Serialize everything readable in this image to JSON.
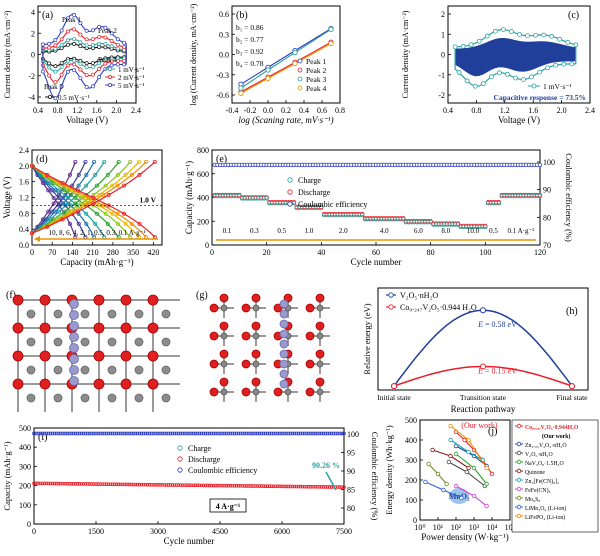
{
  "panels": {
    "a": {
      "letter": "(a)",
      "xlabel": "Voltage (V)",
      "ylabel": "Current density (mA·cm⁻²)",
      "xticks": [
        "0.4",
        "0.8",
        "1.2",
        "1.6",
        "2.0",
        "2.4"
      ],
      "yticks": [
        "-4",
        "-2",
        "0",
        "2",
        "4"
      ],
      "peak_labels": [
        "Peak 1",
        "Peak 2",
        "Peak 3",
        "Peak 4"
      ],
      "legend": [
        "0.5 mV·s⁻¹",
        "1 mV·s⁻¹",
        "2 mV·s⁻¹",
        "5 mV·s⁻¹"
      ]
    },
    "b": {
      "letter": "(b)",
      "xlabel": "log (Scaning rate, mV·s⁻¹)",
      "ylabel": "log (Current density, mA·cm⁻²)",
      "xticks": [
        "-0.4",
        "-0.2",
        "0.0",
        "0.2",
        "0.4",
        "0.6",
        "0.8"
      ],
      "yticks": [
        "-0.6",
        "-0.3",
        "0.0",
        "0.3",
        "0.6"
      ],
      "b_values": [
        "b₁ = 0.86",
        "b₂ = 0.77",
        "b₃ = 0.92",
        "b₄ = 0.78"
      ],
      "legend": [
        "Peak 1",
        "Peak 2",
        "Peak 3",
        "Peak 4"
      ]
    },
    "c": {
      "letter": "(c)",
      "xlabel": "Voltage (V)",
      "ylabel": "Current density (mA·cm⁻²)",
      "xticks": [
        "0.4",
        "0.8",
        "1.2",
        "1.6",
        "2.0",
        "2.4"
      ],
      "yticks": [
        "-2",
        "-1",
        "0",
        "1",
        "2"
      ],
      "legend": "1 mV·s⁻¹",
      "annotation": "Capacitive response = 73.5%"
    },
    "d": {
      "letter": "(d)",
      "xlabel": "Capacity (mAh·g⁻¹)",
      "ylabel": "Voltage (V)",
      "xticks": [
        "0",
        "70",
        "140",
        "210",
        "280",
        "350",
        "420"
      ],
      "yticks": [
        "0.0",
        "0.4",
        "0.8",
        "1.2",
        "1.6",
        "2.0",
        "2.4"
      ],
      "cutoff": "1.0 V",
      "rates": "10, 8, 6, 4, 2, 1, 0.5, 0.3, 0.1 A·g⁻¹"
    },
    "e": {
      "letter": "(e)",
      "xlabel": "Cycle number",
      "ylabel": "Capacity (mAh·g⁻¹)",
      "ylabel2": "Coulombic efficiency (%)",
      "xticks": [
        "0",
        "20",
        "40",
        "60",
        "80",
        "100",
        "120"
      ],
      "yticks": [
        "0",
        "200",
        "400",
        "600",
        "800"
      ],
      "yticks2": [
        "70",
        "80",
        "90",
        "100"
      ],
      "legend": [
        "Charge",
        "Discharge",
        "Coulombic efficiency"
      ],
      "rate_labels": [
        "0.1",
        "0.3",
        "0.5",
        "1.0",
        "2.0",
        "4.0",
        "6.0",
        "8.0",
        "10.0",
        "0.5",
        "0.1 A·g⁻¹"
      ]
    },
    "f": {
      "letter": "(f)"
    },
    "g": {
      "letter": "(g)"
    },
    "h": {
      "letter": "(h)",
      "xlabel": "Reaction pathway",
      "ylabel": "Relative energy (eV)",
      "xticks": [
        "Initial state",
        "Transition state",
        "Final state"
      ],
      "legend": [
        "V₂O₅·nH₂O",
        "Co₀.₂₄₇V₂O₅·0.944 H₂O"
      ],
      "ea_high": "0.58 eV",
      "ea_low": "0.15 eV"
    },
    "i": {
      "letter": "(i)",
      "xlabel": "Cycle number",
      "ylabel": "Capacity (mAh·g⁻¹)",
      "ylabel2": "Coulombic efficiency (%)",
      "xticks": [
        "0",
        "1500",
        "3000",
        "4500",
        "6000",
        "7500"
      ],
      "yticks": [
        "0",
        "100",
        "200",
        "300",
        "400",
        "500"
      ],
      "yticks2": [
        "80",
        "85",
        "90",
        "95",
        "100"
      ],
      "legend": [
        "Charge",
        "Discharge",
        "Coulombic efficiency"
      ],
      "retention": "90.26 %",
      "rate_box": "4 A·g⁻¹"
    },
    "j": {
      "letter": "(j)",
      "xlabel": "Power density (W·kg⁻¹)",
      "ylabel": "Energy density (Wh·kg⁻¹)",
      "xticks": [
        "10⁰",
        "10¹",
        "10²",
        "10³",
        "10⁴",
        "10⁵"
      ],
      "yticks": [
        "0",
        "100",
        "200",
        "300",
        "400",
        "500"
      ],
      "our_work": "(Our work)",
      "mno2": "MnO₂",
      "legend": [
        {
          "label": "Co₀.₂₄₇V₂O₅·0.944H₂O",
          "note": "(Our work)",
          "color": "#e8202a"
        },
        {
          "label": "Zn₀.₂₅V₂O₅·nH₂O",
          "color": "#1f3f9a"
        },
        {
          "label": "V₂O₅·nH₂O",
          "color": "#4a4a4a"
        },
        {
          "label": "NaV₃O₈·1.5H₂O",
          "color": "#2ca02c"
        },
        {
          "label": "Quinone",
          "color": "#8b1a1a"
        },
        {
          "label": "Zn₃[Fe(CN)₆]₂",
          "color": "#17a2b8"
        },
        {
          "label": "FeFe(CN)₆",
          "color": "#d63fd6"
        },
        {
          "label": "Mo₆S₈",
          "color": "#6b8e23"
        },
        {
          "label": "LiMn₂O₄ (Li-ion)",
          "color": "#3060d0"
        },
        {
          "label": "LiFePO₄ (Li-ion)",
          "color": "#f08c00"
        }
      ]
    }
  },
  "colors": {
    "charge": "#2aa198",
    "discharge": "#e8202a",
    "ce": "#2f3fbf",
    "orange": "#e69500",
    "blue_dark": "#1f3f9a",
    "teal": "#2ca3a3"
  },
  "chart_data": [
    {
      "panel": "a",
      "type": "line",
      "xlim": [
        0.4,
        2.4
      ],
      "ylim": [
        -5,
        5
      ],
      "series": [
        {
          "name": "0.5 mV·s⁻¹",
          "peak_oxidation": 1.1,
          "peak_reduction": -1.2
        },
        {
          "name": "1 mV·s⁻¹",
          "peak_oxidation": 1.6,
          "peak_reduction": -1.8
        },
        {
          "name": "2 mV·s⁻¹",
          "peak_oxidation": 2.6,
          "peak_reduction": -2.7
        },
        {
          "name": "5 mV·s⁻¹",
          "peak_oxidation": 4.1,
          "peak_reduction": -3.6
        }
      ]
    },
    {
      "panel": "b",
      "type": "scatter",
      "xlim": [
        -0.4,
        0.8
      ],
      "ylim": [
        -0.75,
        0.75
      ],
      "x": [
        -0.3,
        0.0,
        0.3,
        0.7
      ],
      "series": [
        {
          "name": "Peak 1",
          "values": [
            -0.46,
            -0.2,
            0.06,
            0.4
          ]
        },
        {
          "name": "Peak 2",
          "values": [
            -0.58,
            -0.35,
            -0.12,
            0.19
          ]
        },
        {
          "name": "Peak 3",
          "values": [
            -0.52,
            -0.24,
            0.03,
            0.39
          ]
        },
        {
          "name": "Peak 4",
          "values": [
            -0.6,
            -0.37,
            -0.14,
            0.17
          ]
        }
      ]
    },
    {
      "panel": "d",
      "type": "line",
      "xlim": [
        0,
        450
      ],
      "ylim": [
        0,
        2.4
      ],
      "series": [
        {
          "name": "10",
          "capacity": 150
        },
        {
          "name": "8",
          "capacity": 185
        },
        {
          "name": "6",
          "capacity": 215
        },
        {
          "name": "4",
          "capacity": 250
        },
        {
          "name": "2",
          "capacity": 300
        },
        {
          "name": "1",
          "capacity": 340
        },
        {
          "name": "0.5",
          "capacity": 370
        },
        {
          "name": "0.3",
          "capacity": 395
        },
        {
          "name": "0.1",
          "capacity": 425
        }
      ]
    },
    {
      "panel": "e",
      "type": "scatter",
      "xlim": [
        0,
        120
      ],
      "ylim": [
        0,
        800
      ],
      "ylim2": [
        70,
        105
      ],
      "segments": [
        {
          "rate": "0.1",
          "cycles": [
            1,
            10
          ],
          "capacity": 420
        },
        {
          "rate": "0.3",
          "cycles": [
            11,
            20
          ],
          "capacity": 400
        },
        {
          "rate": "0.5",
          "cycles": [
            21,
            30
          ],
          "capacity": 360
        },
        {
          "rate": "1.0",
          "cycles": [
            31,
            40
          ],
          "capacity": 320
        },
        {
          "rate": "2.0",
          "cycles": [
            41,
            55
          ],
          "capacity": 260
        },
        {
          "rate": "4.0",
          "cycles": [
            56,
            70
          ],
          "capacity": 225
        },
        {
          "rate": "6.0",
          "cycles": [
            71,
            80
          ],
          "capacity": 200
        },
        {
          "rate": "8.0",
          "cycles": [
            81,
            90
          ],
          "capacity": 180
        },
        {
          "rate": "10.0",
          "cycles": [
            91,
            100
          ],
          "capacity": 160
        },
        {
          "rate": "0.5",
          "cycles": [
            101,
            105
          ],
          "capacity": 360
        },
        {
          "rate": "0.1",
          "cycles": [
            106,
            120
          ],
          "capacity": 420
        }
      ],
      "coulombic_efficiency": 99.5
    },
    {
      "panel": "h",
      "type": "line",
      "categories": [
        "Initial state",
        "Transition state",
        "Final state"
      ],
      "series": [
        {
          "name": "V₂O₅·nH₂O",
          "values": [
            0.0,
            0.58,
            0.0
          ]
        },
        {
          "name": "Co₀.₂₄₇V₂O₅·0.944 H₂O",
          "values": [
            0.0,
            0.15,
            0.0
          ]
        }
      ]
    },
    {
      "panel": "i",
      "type": "scatter",
      "xlim": [
        0,
        7500
      ],
      "ylim": [
        0,
        500
      ],
      "ylim2": [
        80,
        100
      ],
      "series": [
        {
          "name": "Charge",
          "start": 212,
          "end": 192
        },
        {
          "name": "Discharge",
          "start": 212,
          "end": 192
        },
        {
          "name": "Coulombic efficiency",
          "value": 99.8
        }
      ]
    },
    {
      "panel": "j",
      "type": "line",
      "x_scale": "log",
      "xlim": [
        1,
        100000
      ],
      "ylim": [
        0,
        500
      ],
      "series": [
        {
          "name": "Co₀.₂₄₇V₂O₅·0.944H₂O",
          "x": [
            100,
            300,
            1000,
            3000,
            10000
          ],
          "y": [
            440,
            400,
            350,
            300,
            230
          ]
        },
        {
          "name": "Zn₀.₂₅V₂O₅·nH₂O",
          "x": [
            100,
            1000,
            5000
          ],
          "y": [
            370,
            320,
            270
          ]
        },
        {
          "name": "V₂O₅·nH₂O",
          "x": [
            40,
            400,
            4000
          ],
          "y": [
            290,
            240,
            170
          ]
        },
        {
          "name": "NaV₃O₈·1.5H₂O",
          "x": [
            100,
            1000,
            5000
          ],
          "y": [
            330,
            260,
            180
          ]
        },
        {
          "name": "Quinone",
          "x": [
            5,
            50,
            500
          ],
          "y": [
            350,
            320,
            260
          ]
        },
        {
          "name": "Zn₃[Fe(CN)₆]₂",
          "x": [
            50,
            500,
            3000
          ],
          "y": [
            400,
            340,
            300
          ]
        },
        {
          "name": "FeFe(CN)₆",
          "x": [
            100,
            1000,
            5000
          ],
          "y": [
            170,
            120,
            70
          ]
        },
        {
          "name": "Mo₆S₈",
          "x": [
            3,
            10,
            30
          ],
          "y": [
            280,
            230,
            180
          ]
        },
        {
          "name": "LiMn₂O₄ (Li-ion)",
          "x": [
            2,
            20,
            200
          ],
          "y": [
            190,
            150,
            110
          ]
        },
        {
          "name": "LiFePO₄ (Li-ion)",
          "x": [
            50,
            500,
            5000
          ],
          "y": [
            470,
            400,
            260
          ]
        }
      ]
    }
  ]
}
